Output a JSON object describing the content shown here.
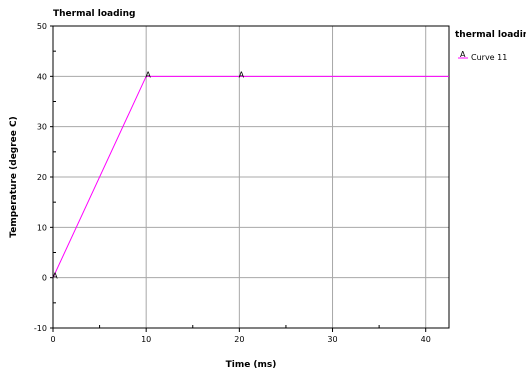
{
  "chart_data": {
    "type": "line",
    "title": "Thermal loading",
    "xlabel": "Time (ms)",
    "ylabel": "Temperature (degree C)",
    "xlim": [
      0,
      42.5
    ],
    "ylim": [
      -10,
      50
    ],
    "xticks": [
      0,
      10,
      20,
      30,
      40
    ],
    "yticks": [
      -10,
      0,
      10,
      20,
      30,
      40,
      50
    ],
    "xticks_minor": [
      5,
      15,
      25,
      35
    ],
    "yticks_minor": [
      -5,
      5,
      15,
      25,
      35,
      45
    ],
    "grid": true,
    "legend_title": "thermal loading",
    "legend_position": "right",
    "series": [
      {
        "name": "Curve 11",
        "marker_label": "A",
        "color": "#ff00ff",
        "x": [
          0,
          10,
          42.5
        ],
        "y": [
          0,
          40,
          40
        ],
        "marker_x": [
          0,
          10,
          20
        ]
      }
    ]
  }
}
